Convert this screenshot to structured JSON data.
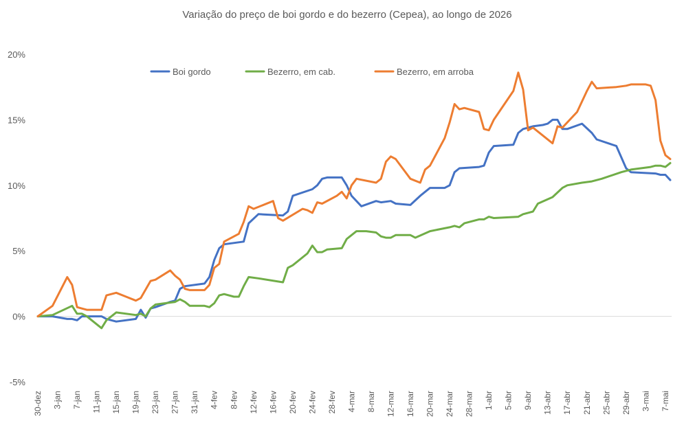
{
  "chart_data": {
    "type": "line",
    "title": "Variação do preço de boi gordo  e do bezerro (Cepea), ao longo de 2026",
    "xlabel": "",
    "ylabel": "",
    "ylim": [
      -0.05,
      0.2
    ],
    "y_ticks": [
      "-5%",
      "0%",
      "5%",
      "10%",
      "15%",
      "20%"
    ],
    "y_tick_values": [
      -0.05,
      0,
      0.05,
      0.1,
      0.15,
      0.2
    ],
    "x_tick_labels": [
      "30-dez",
      "3-jan",
      "7-jan",
      "11-jan",
      "15-jan",
      "19-jan",
      "23-jan",
      "27-jan",
      "31-jan",
      "4-fev",
      "8-fev",
      "12-fev",
      "16-fev",
      "20-fev",
      "24-fev",
      "28-fev",
      "4-mar",
      "8-mar",
      "12-mar",
      "16-mar",
      "20-mar",
      "24-mar",
      "28-mar",
      "1-abr",
      "5-abr",
      "9-abr",
      "13-abr",
      "17-abr",
      "21-abr",
      "25-abr",
      "29-abr",
      "3-mai",
      "7-mai"
    ],
    "x_tick_days": [
      0,
      4,
      8,
      12,
      16,
      20,
      24,
      28,
      32,
      36,
      40,
      44,
      48,
      52,
      56,
      60,
      64,
      68,
      72,
      76,
      80,
      84,
      88,
      92,
      96,
      100,
      104,
      108,
      112,
      116,
      120,
      124,
      128
    ],
    "x_range_days": [
      0,
      129
    ],
    "legend_position": "top",
    "grid": false,
    "series": [
      {
        "name": "Boi gordo",
        "color": "#4472C4",
        "points": [
          [
            0,
            0
          ],
          [
            3,
            0
          ],
          [
            6,
            -0.002
          ],
          [
            7,
            -0.002
          ],
          [
            8,
            -0.003
          ],
          [
            9,
            0
          ],
          [
            13,
            0
          ],
          [
            14,
            -0.002
          ],
          [
            16,
            -0.004
          ],
          [
            20,
            -0.002
          ],
          [
            21,
            0.005
          ],
          [
            22,
            -0.001
          ],
          [
            23,
            0.006
          ],
          [
            24,
            0.007
          ],
          [
            27,
            0.011
          ],
          [
            28,
            0.012
          ],
          [
            29,
            0.021
          ],
          [
            30,
            0.023
          ],
          [
            34,
            0.025
          ],
          [
            35,
            0.03
          ],
          [
            36,
            0.043
          ],
          [
            37,
            0.052
          ],
          [
            38,
            0.055
          ],
          [
            42,
            0.057
          ],
          [
            43,
            0.071
          ],
          [
            45,
            0.078
          ],
          [
            50,
            0.077
          ],
          [
            51,
            0.08
          ],
          [
            52,
            0.092
          ],
          [
            56,
            0.097
          ],
          [
            57,
            0.1
          ],
          [
            58,
            0.105
          ],
          [
            59,
            0.106
          ],
          [
            62,
            0.106
          ],
          [
            63,
            0.1
          ],
          [
            64,
            0.092
          ],
          [
            66,
            0.084
          ],
          [
            69,
            0.088
          ],
          [
            70,
            0.087
          ],
          [
            72,
            0.088
          ],
          [
            73,
            0.086
          ],
          [
            76,
            0.085
          ],
          [
            78,
            0.092
          ],
          [
            80,
            0.098
          ],
          [
            83,
            0.098
          ],
          [
            84,
            0.1
          ],
          [
            85,
            0.11
          ],
          [
            86,
            0.113
          ],
          [
            90,
            0.114
          ],
          [
            91,
            0.115
          ],
          [
            92,
            0.125
          ],
          [
            93,
            0.13
          ],
          [
            97,
            0.131
          ],
          [
            98,
            0.14
          ],
          [
            99,
            0.143
          ],
          [
            101,
            0.145
          ],
          [
            103,
            0.146
          ],
          [
            104,
            0.147
          ],
          [
            105,
            0.15
          ],
          [
            106,
            0.15
          ],
          [
            107,
            0.143
          ],
          [
            108,
            0.143
          ],
          [
            111,
            0.147
          ],
          [
            113,
            0.14
          ],
          [
            114,
            0.135
          ],
          [
            118,
            0.13
          ],
          [
            120,
            0.113
          ],
          [
            121,
            0.11
          ],
          [
            126,
            0.109
          ],
          [
            127,
            0.108
          ],
          [
            128,
            0.108
          ],
          [
            129,
            0.104
          ]
        ]
      },
      {
        "name": "Bezerro, em cab.",
        "color": "#70AD47",
        "points": [
          [
            0,
            0
          ],
          [
            3,
            0.001
          ],
          [
            7,
            0.008
          ],
          [
            8,
            0.002
          ],
          [
            9,
            0.002
          ],
          [
            10,
            0
          ],
          [
            13,
            -0.009
          ],
          [
            14,
            -0.003
          ],
          [
            16,
            0.003
          ],
          [
            20,
            0.001
          ],
          [
            21,
            0.002
          ],
          [
            22,
            0
          ],
          [
            23,
            0.006
          ],
          [
            24,
            0.009
          ],
          [
            28,
            0.011
          ],
          [
            29,
            0.013
          ],
          [
            30,
            0.011
          ],
          [
            31,
            0.008
          ],
          [
            34,
            0.008
          ],
          [
            35,
            0.007
          ],
          [
            36,
            0.01
          ],
          [
            37,
            0.016
          ],
          [
            38,
            0.017
          ],
          [
            40,
            0.015
          ],
          [
            41,
            0.015
          ],
          [
            42,
            0.023
          ],
          [
            43,
            0.03
          ],
          [
            45,
            0.029
          ],
          [
            50,
            0.026
          ],
          [
            51,
            0.037
          ],
          [
            52,
            0.039
          ],
          [
            55,
            0.048
          ],
          [
            56,
            0.054
          ],
          [
            57,
            0.049
          ],
          [
            58,
            0.049
          ],
          [
            59,
            0.051
          ],
          [
            62,
            0.052
          ],
          [
            63,
            0.059
          ],
          [
            64,
            0.062
          ],
          [
            65,
            0.065
          ],
          [
            67,
            0.065
          ],
          [
            69,
            0.064
          ],
          [
            70,
            0.061
          ],
          [
            71,
            0.06
          ],
          [
            72,
            0.06
          ],
          [
            73,
            0.062
          ],
          [
            76,
            0.062
          ],
          [
            77,
            0.06
          ],
          [
            80,
            0.065
          ],
          [
            84,
            0.068
          ],
          [
            85,
            0.069
          ],
          [
            86,
            0.068
          ],
          [
            87,
            0.071
          ],
          [
            90,
            0.074
          ],
          [
            91,
            0.074
          ],
          [
            92,
            0.076
          ],
          [
            93,
            0.075
          ],
          [
            98,
            0.076
          ],
          [
            99,
            0.078
          ],
          [
            100,
            0.079
          ],
          [
            101,
            0.08
          ],
          [
            102,
            0.086
          ],
          [
            105,
            0.091
          ],
          [
            107,
            0.098
          ],
          [
            108,
            0.1
          ],
          [
            111,
            0.102
          ],
          [
            113,
            0.103
          ],
          [
            115,
            0.105
          ],
          [
            119,
            0.11
          ],
          [
            121,
            0.112
          ],
          [
            125,
            0.114
          ],
          [
            126,
            0.115
          ],
          [
            127,
            0.115
          ],
          [
            128,
            0.114
          ],
          [
            129,
            0.117
          ]
        ]
      },
      {
        "name": "Bezerro, em arroba",
        "color": "#ED7D31",
        "points": [
          [
            0,
            0
          ],
          [
            3,
            0.008
          ],
          [
            6,
            0.03
          ],
          [
            7,
            0.024
          ],
          [
            8,
            0.007
          ],
          [
            9,
            0.006
          ],
          [
            10,
            0.005
          ],
          [
            12,
            0.005
          ],
          [
            13,
            0.005
          ],
          [
            14,
            0.016
          ],
          [
            16,
            0.018
          ],
          [
            18,
            0.015
          ],
          [
            20,
            0.012
          ],
          [
            21,
            0.014
          ],
          [
            23,
            0.027
          ],
          [
            24,
            0.028
          ],
          [
            27,
            0.035
          ],
          [
            28,
            0.031
          ],
          [
            29,
            0.028
          ],
          [
            30,
            0.021
          ],
          [
            31,
            0.02
          ],
          [
            34,
            0.02
          ],
          [
            35,
            0.024
          ],
          [
            36,
            0.037
          ],
          [
            37,
            0.04
          ],
          [
            38,
            0.057
          ],
          [
            41,
            0.063
          ],
          [
            42,
            0.072
          ],
          [
            43,
            0.084
          ],
          [
            44,
            0.082
          ],
          [
            48,
            0.088
          ],
          [
            49,
            0.075
          ],
          [
            50,
            0.073
          ],
          [
            54,
            0.082
          ],
          [
            55,
            0.081
          ],
          [
            56,
            0.079
          ],
          [
            57,
            0.087
          ],
          [
            58,
            0.086
          ],
          [
            61,
            0.092
          ],
          [
            62,
            0.095
          ],
          [
            63,
            0.09
          ],
          [
            64,
            0.1
          ],
          [
            65,
            0.105
          ],
          [
            69,
            0.102
          ],
          [
            70,
            0.105
          ],
          [
            71,
            0.118
          ],
          [
            72,
            0.122
          ],
          [
            73,
            0.12
          ],
          [
            76,
            0.105
          ],
          [
            78,
            0.102
          ],
          [
            79,
            0.112
          ],
          [
            80,
            0.115
          ],
          [
            83,
            0.136
          ],
          [
            84,
            0.148
          ],
          [
            85,
            0.162
          ],
          [
            86,
            0.158
          ],
          [
            87,
            0.159
          ],
          [
            90,
            0.156
          ],
          [
            91,
            0.143
          ],
          [
            92,
            0.142
          ],
          [
            93,
            0.15
          ],
          [
            97,
            0.172
          ],
          [
            98,
            0.186
          ],
          [
            99,
            0.173
          ],
          [
            100,
            0.142
          ],
          [
            101,
            0.144
          ],
          [
            105,
            0.132
          ],
          [
            106,
            0.145
          ],
          [
            107,
            0.144
          ],
          [
            110,
            0.156
          ],
          [
            112,
            0.172
          ],
          [
            113,
            0.179
          ],
          [
            114,
            0.174
          ],
          [
            118,
            0.175
          ],
          [
            120,
            0.176
          ],
          [
            121,
            0.177
          ],
          [
            124,
            0.177
          ],
          [
            125,
            0.176
          ],
          [
            126,
            0.165
          ],
          [
            127,
            0.134
          ],
          [
            128,
            0.123
          ],
          [
            129,
            0.12
          ]
        ]
      }
    ]
  }
}
